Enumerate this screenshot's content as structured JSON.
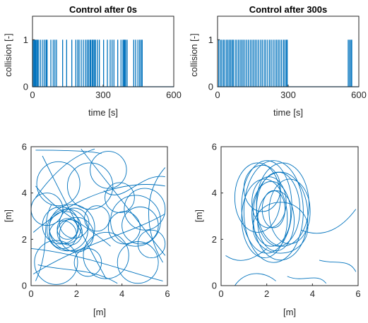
{
  "chart_data": [
    {
      "type": "bar",
      "id": "collision-0s",
      "title": "Control after 0s",
      "xlabel": "time [s]",
      "ylabel": "collision [-]",
      "xlim": [
        0,
        600
      ],
      "ylim": [
        0,
        1.5
      ],
      "xticks": [
        0,
        300,
        600
      ],
      "yticks": [
        0,
        1
      ],
      "grid": false,
      "color": "#0072BD",
      "collision_times": [
        3,
        7,
        11,
        14,
        18,
        22,
        27,
        35,
        44,
        52,
        58,
        62,
        78,
        88,
        95,
        102,
        128,
        145,
        167,
        184,
        192,
        198,
        207,
        216,
        225,
        232,
        238,
        244,
        248,
        254,
        258,
        263,
        268,
        276,
        284,
        302,
        318,
        330,
        338,
        346,
        362,
        376,
        384,
        388,
        392,
        396,
        402,
        430,
        438,
        448,
        455,
        461,
        466
      ]
    },
    {
      "type": "bar",
      "id": "collision-300s",
      "title": "Control after 300s",
      "xlabel": "time [s]",
      "ylabel": "collision [-]",
      "xlim": [
        0,
        600
      ],
      "ylim": [
        0,
        1.5
      ],
      "xticks": [
        0,
        300,
        600
      ],
      "yticks": [
        0,
        1
      ],
      "grid": false,
      "color": "#0072BD",
      "collision_times": [
        5,
        12,
        18,
        25,
        31,
        38,
        44,
        50,
        56,
        62,
        67,
        75,
        82,
        89,
        96,
        103,
        109,
        116,
        124,
        131,
        139,
        146,
        153,
        160,
        167,
        175,
        183,
        190,
        198,
        205,
        213,
        221,
        228,
        236,
        244,
        251,
        258,
        265,
        272,
        280,
        286,
        292,
        296,
        555,
        560,
        566,
        570
      ]
    },
    {
      "type": "line",
      "id": "trajectory-0s",
      "xlabel": "[m]",
      "ylabel": "[m]",
      "xlim": [
        0,
        6
      ],
      "ylim": [
        0,
        6
      ],
      "xticks": [
        0,
        2,
        4,
        6
      ],
      "yticks": [
        0,
        2,
        4,
        6
      ],
      "grid": false,
      "color": "#0072BD",
      "loops": [
        {
          "cx": 1.6,
          "cy": 2.4,
          "r": 0.9
        },
        {
          "cx": 1.5,
          "cy": 2.5,
          "r": 0.7
        },
        {
          "cx": 1.7,
          "cy": 2.3,
          "r": 0.55
        },
        {
          "cx": 1.8,
          "cy": 2.5,
          "r": 1.0
        },
        {
          "cx": 1.3,
          "cy": 2.6,
          "r": 0.8
        },
        {
          "cx": 2.0,
          "cy": 2.2,
          "r": 0.75
        },
        {
          "cx": 1.4,
          "cy": 2.2,
          "r": 0.6
        },
        {
          "cx": 1.9,
          "cy": 2.7,
          "r": 0.65
        },
        {
          "cx": 1.6,
          "cy": 2.45,
          "r": 0.45
        },
        {
          "cx": 1.2,
          "cy": 4.4,
          "r": 0.95
        },
        {
          "cx": 2.6,
          "cy": 4.3,
          "r": 1.0
        },
        {
          "cx": 3.4,
          "cy": 5.0,
          "r": 0.8
        },
        {
          "cx": 4.6,
          "cy": 2.8,
          "r": 1.1
        },
        {
          "cx": 4.8,
          "cy": 2.6,
          "r": 0.8
        },
        {
          "cx": 4.1,
          "cy": 2.5,
          "r": 0.7
        },
        {
          "cx": 5.0,
          "cy": 3.3,
          "r": 0.9
        },
        {
          "cx": 3.3,
          "cy": 1.3,
          "r": 1.0
        },
        {
          "cx": 4.7,
          "cy": 1.0,
          "r": 0.9
        },
        {
          "cx": 1.1,
          "cy": 1.0,
          "r": 0.95
        },
        {
          "cx": 0.7,
          "cy": 3.3,
          "r": 0.7
        },
        {
          "cx": 2.5,
          "cy": 1.0,
          "r": 0.6
        },
        {
          "cx": 5.3,
          "cy": 1.8,
          "r": 0.6
        },
        {
          "cx": 3.9,
          "cy": 3.8,
          "r": 0.65
        },
        {
          "cx": 2.9,
          "cy": 2.9,
          "r": 0.55
        }
      ],
      "paths": [
        [
          [
            0.2,
            5.85
          ],
          [
            2.5,
            5.85
          ],
          [
            3.1,
            5.7
          ]
        ],
        [
          [
            0.1,
            2.3
          ],
          [
            2.0,
            3.9
          ],
          [
            4.2,
            4.6
          ],
          [
            5.9,
            4.3
          ]
        ],
        [
          [
            0.0,
            1.6
          ],
          [
            2.2,
            1.4
          ],
          [
            4.5,
            0.5
          ],
          [
            5.8,
            0.2
          ]
        ],
        [
          [
            0.5,
            5.6
          ],
          [
            1.8,
            3.0
          ],
          [
            3.3,
            0.3
          ]
        ],
        [
          [
            2.2,
            5.9
          ],
          [
            4.3,
            3.3
          ],
          [
            5.9,
            1.3
          ]
        ],
        [
          [
            0.1,
            0.5
          ],
          [
            2.4,
            1.9
          ],
          [
            4.3,
            2.2
          ],
          [
            5.9,
            3.1
          ]
        ],
        [
          [
            0.3,
            0.9
          ],
          [
            1.5,
            0.6
          ],
          [
            2.6,
            0.8
          ],
          [
            3.8,
            0.1
          ]
        ],
        [
          [
            5.9,
            5.1
          ],
          [
            4.9,
            4.0
          ],
          [
            5.0,
            2.3
          ],
          [
            5.8,
            1.0
          ]
        ],
        [
          [
            0.2,
            4.3
          ],
          [
            1.2,
            3.1
          ],
          [
            2.2,
            2.8
          ],
          [
            3.5,
            1.7
          ]
        ],
        [
          [
            0.2,
            3.8
          ],
          [
            1.0,
            4.9
          ],
          [
            1.8,
            5.6
          ],
          [
            2.8,
            5.9
          ]
        ],
        [
          [
            3.2,
            4.1
          ],
          [
            4.0,
            3.4
          ],
          [
            4.8,
            4.9
          ],
          [
            5.9,
            4.7
          ]
        ],
        [
          [
            0.2,
            0.2
          ],
          [
            0.9,
            1.7
          ],
          [
            0.4,
            2.6
          ],
          [
            0.9,
            3.5
          ]
        ]
      ]
    },
    {
      "type": "line",
      "id": "trajectory-300s",
      "xlabel": "[m]",
      "ylabel": "[m]",
      "xlim": [
        0,
        6
      ],
      "ylim": [
        0,
        6
      ],
      "xticks": [
        0,
        2,
        4,
        6
      ],
      "yticks": [
        0,
        2,
        4,
        6
      ],
      "grid": false,
      "color": "#0072BD",
      "loops": [
        {
          "cx": 2.3,
          "cy": 3.2,
          "rx": 1.3,
          "ry": 2.2
        },
        {
          "cx": 2.6,
          "cy": 3.0,
          "rx": 1.2,
          "ry": 1.9
        },
        {
          "cx": 2.0,
          "cy": 3.4,
          "rx": 1.1,
          "ry": 2.0
        },
        {
          "cx": 2.5,
          "cy": 3.3,
          "rx": 0.95,
          "ry": 1.6
        },
        {
          "cx": 2.2,
          "cy": 3.1,
          "rx": 0.85,
          "ry": 1.4
        },
        {
          "cx": 1.9,
          "cy": 2.9,
          "rx": 1.0,
          "ry": 1.7
        },
        {
          "cx": 2.7,
          "cy": 3.5,
          "rx": 1.15,
          "ry": 1.8
        },
        {
          "cx": 2.1,
          "cy": 3.6,
          "rx": 0.75,
          "ry": 1.1
        },
        {
          "cx": 2.4,
          "cy": 2.8,
          "rx": 0.8,
          "ry": 1.3
        },
        {
          "cx": 1.6,
          "cy": 3.8,
          "rx": 1.0,
          "ry": 1.5
        },
        {
          "cx": 3.0,
          "cy": 3.2,
          "rx": 0.9,
          "ry": 1.4
        },
        {
          "cx": 2.3,
          "cy": 3.3,
          "rx": 0.5,
          "ry": 0.8
        },
        {
          "cx": 2.6,
          "cy": 2.5,
          "rx": 1.2,
          "ry": 1.1
        },
        {
          "cx": 1.8,
          "cy": 4.2,
          "rx": 0.8,
          "ry": 1.0
        }
      ],
      "paths": [
        [
          [
            0.2,
            1.3
          ],
          [
            0.8,
            0.9
          ],
          [
            1.4,
            1.1
          ],
          [
            2.0,
            1.6
          ]
        ],
        [
          [
            3.5,
            2.4
          ],
          [
            4.5,
            2.0
          ],
          [
            5.3,
            2.5
          ],
          [
            5.9,
            3.3
          ]
        ],
        [
          [
            4.3,
            1.1
          ],
          [
            5.0,
            0.9
          ],
          [
            5.6,
            1.2
          ],
          [
            5.9,
            0.6
          ]
        ],
        [
          [
            0.6,
            0.0
          ],
          [
            1.0,
            0.6
          ],
          [
            1.8,
            0.7
          ],
          [
            2.4,
            0.2
          ]
        ],
        [
          [
            2.9,
            0.4
          ],
          [
            3.6,
            0.1
          ],
          [
            4.2,
            0.6
          ],
          [
            4.6,
            0.1
          ]
        ]
      ]
    }
  ]
}
